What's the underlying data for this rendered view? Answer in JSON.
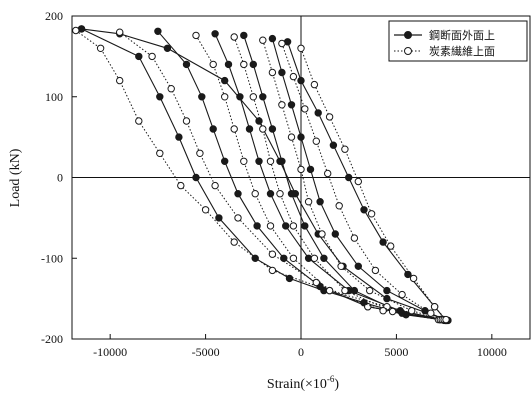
{
  "chart_data": {
    "type": "line",
    "xlabel": "Strain(×10",
    "xlabel_sup": "-6",
    "xlabel_close": ")",
    "ylabel": "Load (kN)",
    "xlim": [
      -12000,
      12000
    ],
    "ylim": [
      -200,
      200
    ],
    "xticks": [
      -10000,
      -5000,
      0,
      5000,
      10000
    ],
    "yticks": [
      -200,
      -100,
      0,
      100,
      200
    ],
    "grid": false,
    "zero_lines": true,
    "legend_placement": "top-right",
    "colors": {
      "axes": "#111111",
      "series": "#1a1a1a",
      "background": "#ffffff"
    },
    "series": [
      {
        "name": "鋼断面外面上",
        "marker": "filled-circle",
        "line": "solid",
        "loops": [
          {
            "x": [
              7700,
              4500,
              2200,
              900,
              -300,
              -1100,
              -2200,
              -4000,
              -7000,
              -9500,
              -11500
            ],
            "y": [
              -177,
              -150,
              -110,
              -70,
              -20,
              20,
              70,
              120,
              160,
              178,
              184
            ]
          },
          {
            "x": [
              -11500,
              -8500,
              -7400,
              -6400,
              -5500,
              -4300,
              -2400,
              -600,
              1200,
              3300,
              5500,
              7700
            ],
            "y": [
              184,
              150,
              100,
              50,
              0,
              -50,
              -100,
              -125,
              -140,
              -155,
              -170,
              -177
            ]
          },
          {
            "x": [
              -7500,
              -6000,
              -5200,
              -4600,
              -4000,
              -3300,
              -2300,
              -900,
              1000,
              3500,
              7600
            ],
            "y": [
              181,
              140,
              100,
              60,
              20,
              -20,
              -60,
              -100,
              -135,
              -160,
              -177
            ]
          },
          {
            "x": [
              -4500,
              -3800,
              -3200,
              -2700,
              -2200,
              -1600,
              -800,
              400,
              2500,
              5200,
              7600
            ],
            "y": [
              178,
              140,
              100,
              60,
              20,
              -20,
              -60,
              -100,
              -140,
              -165,
              -177
            ]
          },
          {
            "x": [
              -3000,
              -2500,
              -2000,
              -1500,
              -1000,
              -500,
              200,
              1200,
              2800,
              5300,
              7500
            ],
            "y": [
              176,
              140,
              100,
              60,
              20,
              -20,
              -60,
              -100,
              -140,
              -168,
              -177
            ]
          },
          {
            "x": [
              -1500,
              -1000,
              -500,
              0,
              500,
              1000,
              1800,
              3000,
              4500,
              6500,
              7600
            ],
            "y": [
              172,
              130,
              90,
              50,
              10,
              -30,
              -70,
              -110,
              -140,
              -165,
              -177
            ]
          },
          {
            "x": [
              -700,
              0,
              900,
              1700,
              2500,
              3300,
              4300,
              5600,
              7000,
              7600
            ],
            "y": [
              168,
              120,
              80,
              40,
              0,
              -40,
              -80,
              -120,
              -160,
              -177
            ]
          }
        ]
      },
      {
        "name": "炭素繊維上面",
        "marker": "open-circle",
        "line": "dotted",
        "loops": [
          {
            "x": [
              -11800,
              -10500,
              -9500,
              -8500,
              -7400,
              -6300,
              -5000,
              -3500,
              -1500,
              1500,
              4500,
              7300
            ],
            "y": [
              182,
              160,
              120,
              70,
              30,
              -10,
              -40,
              -80,
              -115,
              -140,
              -160,
              -176
            ]
          },
          {
            "x": [
              -9500,
              -7800,
              -6800,
              -6000,
              -5300,
              -4500,
              -3300,
              -1500,
              800,
              3500,
              7300
            ],
            "y": [
              180,
              150,
              110,
              70,
              30,
              -10,
              -50,
              -95,
              -130,
              -160,
              -176
            ]
          },
          {
            "x": [
              -5500,
              -4600,
              -4000,
              -3500,
              -3000,
              -2400,
              -1600,
              -400,
              1500,
              4300,
              7200
            ],
            "y": [
              176,
              140,
              100,
              60,
              20,
              -20,
              -60,
              -100,
              -140,
              -165,
              -176
            ]
          },
          {
            "x": [
              -3500,
              -3000,
              -2500,
              -2000,
              -1600,
              -1100,
              -400,
              700,
              2300,
              4800,
              7300
            ],
            "y": [
              174,
              140,
              100,
              60,
              20,
              -20,
              -60,
              -100,
              -140,
              -166,
              -176
            ]
          },
          {
            "x": [
              -2000,
              -1500,
              -1000,
              -500,
              0,
              400,
              1100,
              2100,
              3600,
              5800,
              7400
            ],
            "y": [
              170,
              130,
              90,
              50,
              10,
              -30,
              -70,
              -110,
              -140,
              -165,
              -176
            ]
          },
          {
            "x": [
              -1000,
              -400,
              200,
              800,
              1400,
              2000,
              2800,
              3900,
              5300,
              6800,
              7500
            ],
            "y": [
              166,
              125,
              85,
              45,
              5,
              -35,
              -75,
              -115,
              -145,
              -168,
              -176
            ]
          },
          {
            "x": [
              0,
              700,
              1500,
              2300,
              3000,
              3700,
              4700,
              5900,
              7000,
              7600
            ],
            "y": [
              160,
              115,
              75,
              35,
              -5,
              -45,
              -85,
              -125,
              -160,
              -176
            ]
          }
        ]
      }
    ]
  }
}
